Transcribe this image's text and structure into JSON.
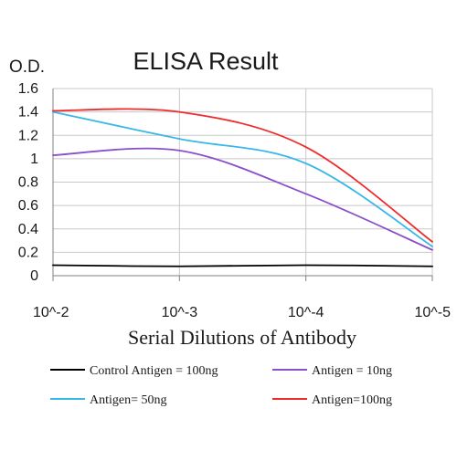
{
  "chart_data": {
    "type": "line",
    "title": "ELISA Result",
    "ylabel": "O.D.",
    "xlabel": "Serial Dilutions of Antibody",
    "x_categories": [
      "10^-2",
      "10^-3",
      "10^-4",
      "10^-5"
    ],
    "x_scale": "log",
    "ylim": [
      0,
      1.6
    ],
    "yticks": [
      "0",
      "0.2",
      "0.4",
      "0.6",
      "0.8",
      "1",
      "1.2",
      "1.4",
      "1.6"
    ],
    "grid": "horizontal",
    "legend_position": "bottom",
    "series": [
      {
        "name": "Control Antigen = 100ng",
        "color": "#000000",
        "points": [
          {
            "x": "10^-2",
            "y": 0.09
          },
          {
            "x": "10^-3",
            "y": 0.08
          },
          {
            "x": "10^-4",
            "y": 0.09
          },
          {
            "x": "10^-5",
            "y": 0.08
          }
        ]
      },
      {
        "name": "Antigen = 10ng",
        "color": "#8a4fc9",
        "points": [
          {
            "x": "10^-2",
            "y": 1.03
          },
          {
            "x": "10^-3",
            "y": 1.07
          },
          {
            "x": "10^-4",
            "y": 0.7
          },
          {
            "x": "10^-5",
            "y": 0.22
          }
        ]
      },
      {
        "name": "Antigen= 50ng",
        "color": "#38b7e8",
        "points": [
          {
            "x": "10^-2",
            "y": 1.4
          },
          {
            "x": "10^-3",
            "y": 1.17
          },
          {
            "x": "10^-4",
            "y": 0.96
          },
          {
            "x": "10^-5",
            "y": 0.25
          }
        ]
      },
      {
        "name": "Antigen=100ng",
        "color": "#f02a2a",
        "points": [
          {
            "x": "10^-2",
            "y": 1.41
          },
          {
            "x": "10^-3",
            "y": 1.4
          },
          {
            "x": "10^-4",
            "y": 1.1
          },
          {
            "x": "10^-5",
            "y": 0.29
          }
        ]
      }
    ]
  }
}
